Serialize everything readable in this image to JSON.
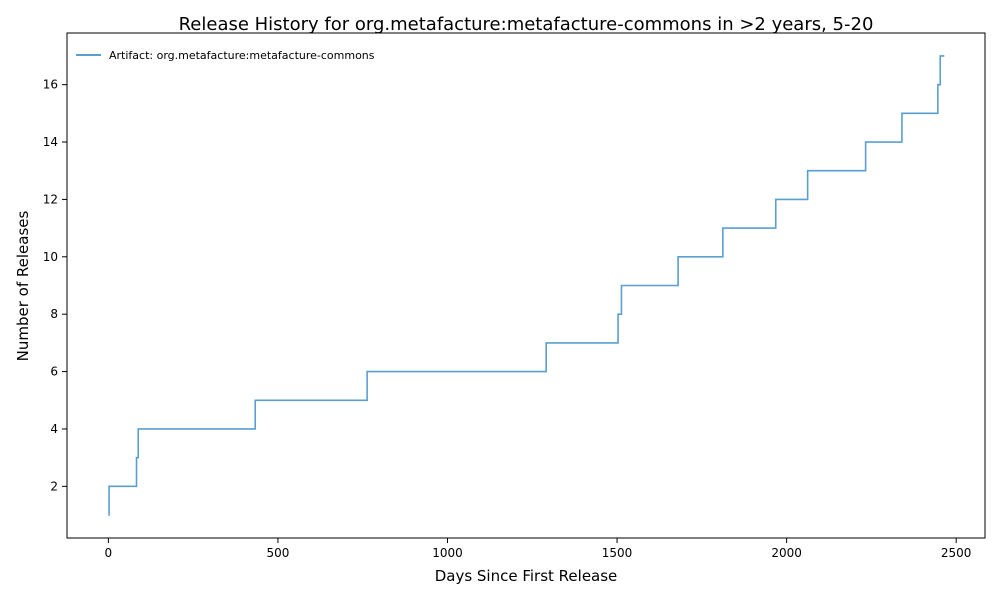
{
  "chart_data": {
    "type": "line",
    "step": "post",
    "title": "Release History for org.metafacture:metafacture-commons in >2 years, 5-20",
    "xlabel": "Days Since First Release",
    "ylabel": "Number of Releases",
    "xlim": [
      -122,
      2585
    ],
    "ylim": [
      0.2,
      17.8
    ],
    "xticks": [
      0,
      500,
      1000,
      1500,
      2000,
      2500
    ],
    "yticks": [
      2,
      4,
      6,
      8,
      10,
      12,
      14,
      16
    ],
    "grid": false,
    "legend_position": "top-left",
    "series": [
      {
        "name": "Artifact: org.metafacture:metafacture-commons",
        "color": "#5a9fd0",
        "x": [
          0,
          2,
          83,
          88,
          433,
          763,
          1291,
          1503,
          1513,
          1680,
          1812,
          1968,
          2062,
          2233,
          2340,
          2446,
          2453,
          2465
        ],
        "y": [
          1,
          2,
          3,
          4,
          5,
          6,
          7,
          8,
          9,
          10,
          11,
          12,
          13,
          14,
          15,
          16,
          17,
          17
        ]
      }
    ]
  }
}
